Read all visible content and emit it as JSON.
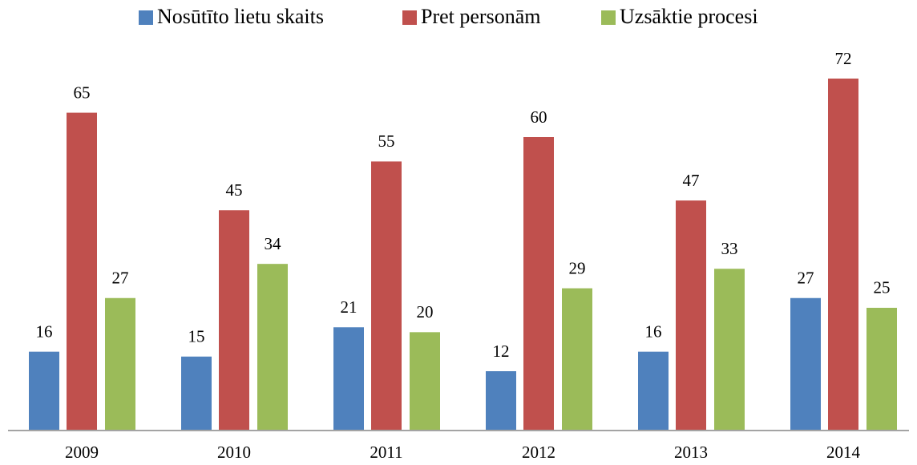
{
  "chart_data": {
    "type": "bar",
    "categories": [
      "2009",
      "2010",
      "2011",
      "2012",
      "2013",
      "2014"
    ],
    "series": [
      {
        "name": "Nosūtīto lietu skaits",
        "color": "#4f81bd",
        "values": [
          16,
          15,
          21,
          12,
          16,
          27
        ]
      },
      {
        "name": "Pret personām",
        "color": "#c0504d",
        "values": [
          65,
          45,
          55,
          60,
          47,
          72
        ]
      },
      {
        "name": "Uzsāktie procesi",
        "color": "#9bbb59",
        "values": [
          27,
          34,
          20,
          29,
          33,
          25
        ]
      }
    ],
    "legend": "top"
  }
}
